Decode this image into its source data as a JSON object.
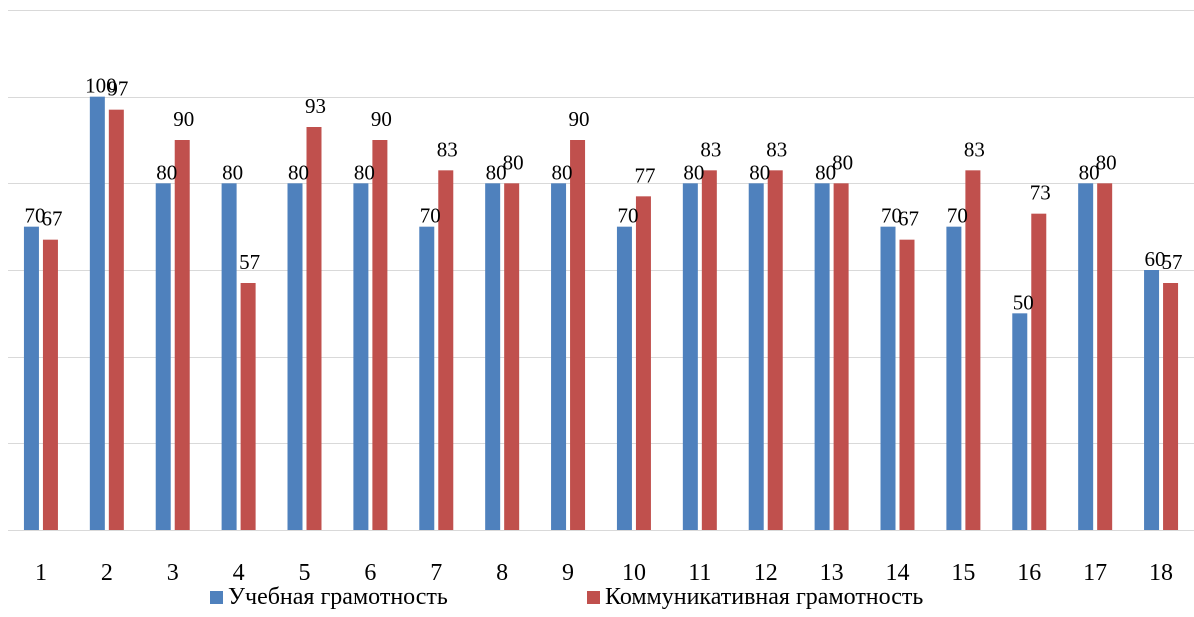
{
  "chart_data": {
    "type": "bar",
    "title": "",
    "xlabel": "",
    "ylabel": "",
    "ylim": [
      0,
      120
    ],
    "grid": true,
    "legend_position": "bottom",
    "categories": [
      "1",
      "2",
      "3",
      "4",
      "5",
      "6",
      "7",
      "8",
      "9",
      "10",
      "11",
      "12",
      "13",
      "14",
      "15",
      "16",
      "17",
      "18"
    ],
    "series": [
      {
        "name": "Учебная грамотность",
        "color": "#4f81bd",
        "values": [
          70,
          100,
          80,
          80,
          80,
          80,
          70,
          80,
          80,
          70,
          80,
          80,
          80,
          70,
          70,
          50,
          80,
          60
        ]
      },
      {
        "name": "Коммуникативная грамотность",
        "color": "#c0504d",
        "values": [
          67,
          97,
          90,
          57,
          93,
          90,
          83,
          80,
          90,
          77,
          83,
          83,
          80,
          67,
          83,
          73,
          80,
          57
        ]
      }
    ]
  }
}
